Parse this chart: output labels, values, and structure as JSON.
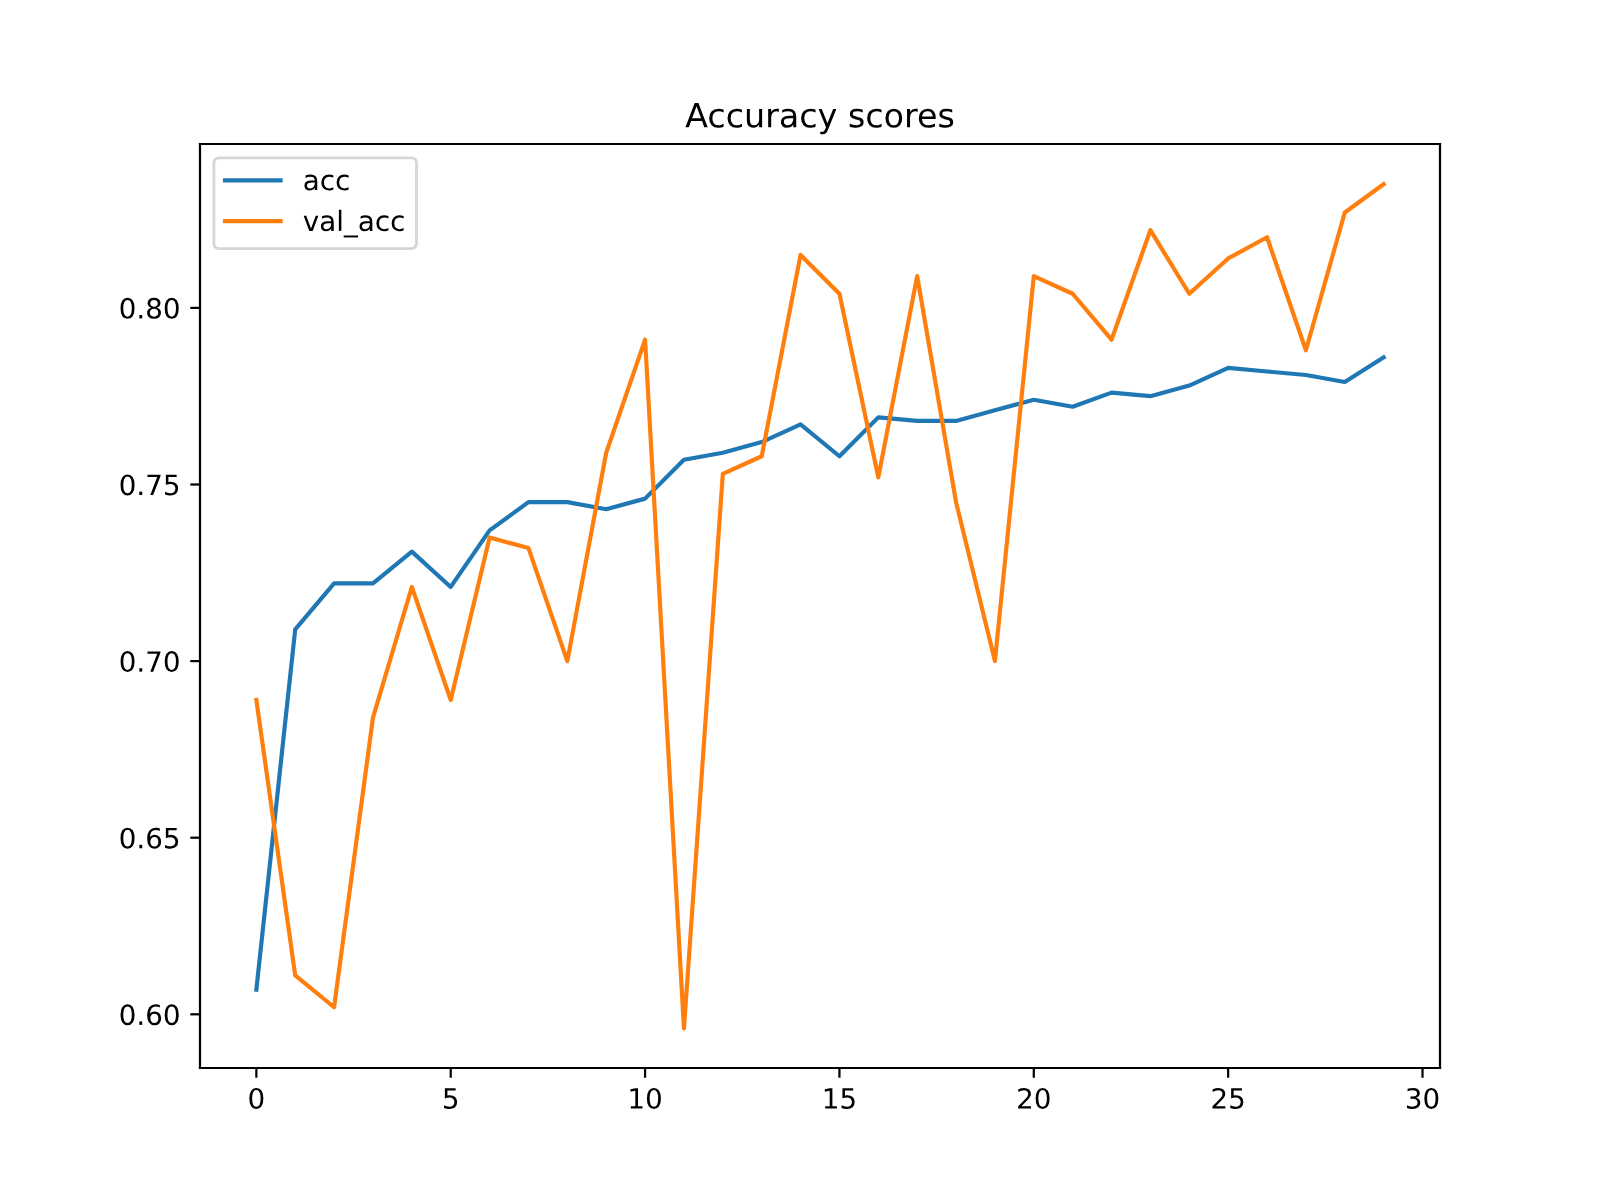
{
  "chart_data": {
    "type": "line",
    "title": "Accuracy scores",
    "x": [
      0,
      1,
      2,
      3,
      4,
      5,
      6,
      7,
      8,
      9,
      10,
      11,
      12,
      13,
      14,
      15,
      16,
      17,
      18,
      19,
      20,
      21,
      22,
      23,
      24,
      25,
      26,
      27,
      28,
      29
    ],
    "series": [
      {
        "name": "acc",
        "color": "#1f77b4",
        "values": [
          0.607,
          0.709,
          0.722,
          0.722,
          0.731,
          0.721,
          0.737,
          0.745,
          0.745,
          0.743,
          0.746,
          0.757,
          0.759,
          0.762,
          0.767,
          0.758,
          0.769,
          0.768,
          0.768,
          0.771,
          0.774,
          0.772,
          0.776,
          0.775,
          0.778,
          0.783,
          0.782,
          0.781,
          0.779,
          0.786
        ]
      },
      {
        "name": "val_acc",
        "color": "#ff7f0e",
        "values": [
          0.689,
          0.611,
          0.602,
          0.684,
          0.721,
          0.689,
          0.735,
          0.732,
          0.7,
          0.759,
          0.791,
          0.596,
          0.753,
          0.758,
          0.815,
          0.804,
          0.752,
          0.809,
          0.745,
          0.7,
          0.809,
          0.804,
          0.791,
          0.822,
          0.804,
          0.814,
          0.82,
          0.788,
          0.827,
          0.835
        ]
      }
    ],
    "xlim": [
      -1.45,
      30.45
    ],
    "xticks": [
      0,
      5,
      10,
      15,
      20,
      25,
      30
    ],
    "ylim": [
      0.5848,
      0.8464
    ],
    "yticks": [
      {
        "value": 0.6,
        "label": "0.60"
      },
      {
        "value": 0.65,
        "label": "0.65"
      },
      {
        "value": 0.7,
        "label": "0.70"
      },
      {
        "value": 0.75,
        "label": "0.75"
      },
      {
        "value": 0.8,
        "label": "0.80"
      }
    ],
    "grid": false,
    "legend": "top left",
    "line_style": "solid",
    "marker": "none"
  }
}
